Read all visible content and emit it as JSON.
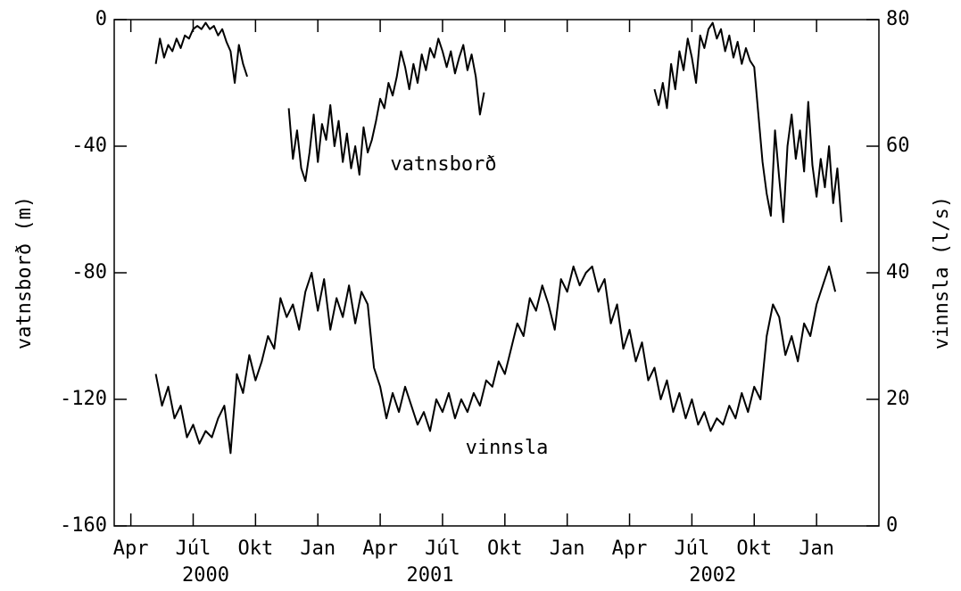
{
  "chart_data": {
    "type": "line",
    "xlabel": "",
    "ylabel": "vatnsborð (m)",
    "y2label": "vinnsla (l/s)",
    "annotations": [
      "vatnsborð",
      "vinnsla"
    ],
    "xlim": [
      2.2,
      39
    ],
    "xticks": [
      {
        "value": 3,
        "label": "Apr"
      },
      {
        "value": 6,
        "label": "Júl"
      },
      {
        "value": 9,
        "label": "Okt"
      },
      {
        "value": 12,
        "label": "Jan"
      },
      {
        "value": 15,
        "label": "Apr"
      },
      {
        "value": 18,
        "label": "Júl"
      },
      {
        "value": 21,
        "label": "Okt"
      },
      {
        "value": 24,
        "label": "Jan"
      },
      {
        "value": 27,
        "label": "Apr"
      },
      {
        "value": 30,
        "label": "Júl"
      },
      {
        "value": 33,
        "label": "Okt"
      },
      {
        "value": 36,
        "label": "Jan"
      }
    ],
    "xyears": [
      {
        "value": 6.6,
        "label": "2000"
      },
      {
        "value": 17.4,
        "label": "2001"
      },
      {
        "value": 31.0,
        "label": "2002"
      }
    ],
    "ylim": [
      -160,
      0
    ],
    "yticks": [
      -160,
      -120,
      -80,
      -40,
      0
    ],
    "y2lim": [
      0,
      80
    ],
    "y2ticks": [
      0,
      20,
      40,
      60,
      80
    ],
    "series": [
      {
        "name": "vatnsborð",
        "color": "#000000",
        "axis": "y",
        "x": [
          4.2,
          4.4,
          4.6,
          4.8,
          5.0,
          5.2,
          5.4,
          5.6,
          5.8,
          6.0,
          6.2,
          6.4,
          6.6,
          6.8,
          7.0,
          7.2,
          7.4,
          7.6,
          7.8,
          8.0,
          8.2,
          8.4,
          8.6,
          9.6,
          10.6,
          10.8,
          11.0,
          11.2,
          11.4,
          11.6,
          11.8,
          12.0,
          12.2,
          12.4,
          12.6,
          12.8,
          13.0,
          13.2,
          13.4,
          13.6,
          13.8,
          14.0,
          14.2,
          14.4,
          14.6,
          14.8,
          15.0,
          15.2,
          15.4,
          15.6,
          15.8,
          16.0,
          16.2,
          16.4,
          16.6,
          16.8,
          17.0,
          17.2,
          17.4,
          17.6,
          17.8,
          18.0,
          18.2,
          18.4,
          18.6,
          18.8,
          19.0,
          19.2,
          19.4,
          19.6,
          19.8,
          20.0,
          24.0,
          28.2,
          28.4,
          28.6,
          28.8,
          29.0,
          29.2,
          29.4,
          29.6,
          29.8,
          30.0,
          30.2,
          30.4,
          30.6,
          30.8,
          31.0,
          31.2,
          31.4,
          31.6,
          31.8,
          32.0,
          32.2,
          32.4,
          32.6,
          32.8,
          33.0,
          33.2,
          33.4,
          33.6,
          33.8,
          34.0,
          34.2,
          34.4,
          34.6,
          34.8,
          35.0,
          35.2,
          35.4,
          35.6,
          35.8,
          36.0,
          36.2,
          36.4,
          36.6,
          36.8,
          37.0,
          37.2
        ],
        "values": [
          -14,
          -6,
          -12,
          -8,
          -10,
          -6,
          -9,
          -5,
          -6,
          -3,
          -2,
          -3,
          -1,
          -3,
          -2,
          -5,
          -3,
          -7,
          -10,
          -20,
          -8,
          -14,
          -18,
          null,
          -28,
          -44,
          -35,
          -47,
          -51,
          -42,
          -30,
          -45,
          -33,
          -38,
          -27,
          -40,
          -32,
          -45,
          -36,
          -47,
          -40,
          -49,
          -34,
          -42,
          -38,
          -32,
          -25,
          -28,
          -20,
          -24,
          -18,
          -10,
          -15,
          -22,
          -14,
          -20,
          -11,
          -16,
          -9,
          -12,
          -6,
          -10,
          -15,
          -10,
          -17,
          -12,
          -8,
          -16,
          -11,
          -18,
          -30,
          -23,
          null,
          -22,
          -27,
          -20,
          -28,
          -14,
          -22,
          -10,
          -16,
          -6,
          -12,
          -20,
          -5,
          -9,
          -3,
          -1,
          -6,
          -3,
          -10,
          -5,
          -12,
          -7,
          -14,
          -9,
          -13,
          -15,
          -30,
          -45,
          -55,
          -62,
          -35,
          -50,
          -64,
          -40,
          -30,
          -44,
          -35,
          -48,
          -26,
          -46,
          -56,
          -44,
          -53,
          -40,
          -58,
          -47,
          -64
        ]
      },
      {
        "name": "vinnsla",
        "color": "#000000",
        "axis": "y2",
        "x": [
          4.2,
          4.5,
          4.8,
          5.1,
          5.4,
          5.7,
          6.0,
          6.3,
          6.6,
          6.9,
          7.2,
          7.5,
          7.8,
          8.1,
          8.4,
          8.7,
          9.0,
          9.3,
          9.6,
          9.9,
          10.2,
          10.5,
          10.8,
          11.1,
          11.4,
          11.7,
          12.0,
          12.3,
          12.6,
          12.9,
          13.2,
          13.5,
          13.8,
          14.1,
          14.4,
          14.7,
          15.0,
          15.3,
          15.6,
          15.9,
          16.2,
          16.5,
          16.8,
          17.1,
          17.4,
          17.7,
          18.0,
          18.3,
          18.6,
          18.9,
          19.2,
          19.5,
          19.8,
          20.1,
          20.4,
          20.7,
          21.0,
          21.3,
          21.6,
          21.9,
          22.2,
          22.5,
          22.8,
          23.1,
          23.4,
          23.7,
          24.0,
          24.3,
          24.6,
          24.9,
          25.2,
          25.5,
          25.8,
          26.1,
          26.4,
          26.7,
          27.0,
          27.3,
          27.6,
          27.9,
          28.2,
          28.5,
          28.8,
          29.1,
          29.4,
          29.7,
          30.0,
          30.3,
          30.6,
          30.9,
          31.2,
          31.5,
          31.8,
          32.1,
          32.4,
          32.7,
          33.0,
          33.3,
          33.6,
          33.9,
          34.2,
          34.5,
          34.8,
          35.1,
          35.4,
          35.7,
          36.0,
          36.3,
          36.6,
          36.9
        ],
        "values": [
          24,
          19,
          22,
          17,
          19,
          14,
          16,
          13,
          15,
          14,
          17,
          19,
          11.5,
          24,
          21,
          27,
          23,
          26,
          30,
          28,
          36,
          33,
          35,
          31,
          37,
          40,
          34,
          39,
          31,
          36,
          33,
          38,
          32,
          37,
          35,
          25,
          22,
          17,
          21,
          18,
          22,
          19,
          16,
          18,
          15,
          20,
          18,
          21,
          17,
          20,
          18,
          21,
          19,
          23,
          22,
          26,
          24,
          28,
          32,
          30,
          36,
          34,
          38,
          35,
          31,
          39,
          37,
          41,
          38,
          40,
          41,
          37,
          39,
          32,
          35,
          28,
          31,
          26,
          29,
          23,
          25,
          20,
          23,
          18,
          21,
          17,
          20,
          16,
          18,
          15,
          17,
          16,
          19,
          17,
          21,
          18,
          22,
          20,
          30,
          35,
          33,
          27,
          30,
          26,
          32,
          30,
          35,
          38,
          41,
          37
        ]
      }
    ]
  }
}
